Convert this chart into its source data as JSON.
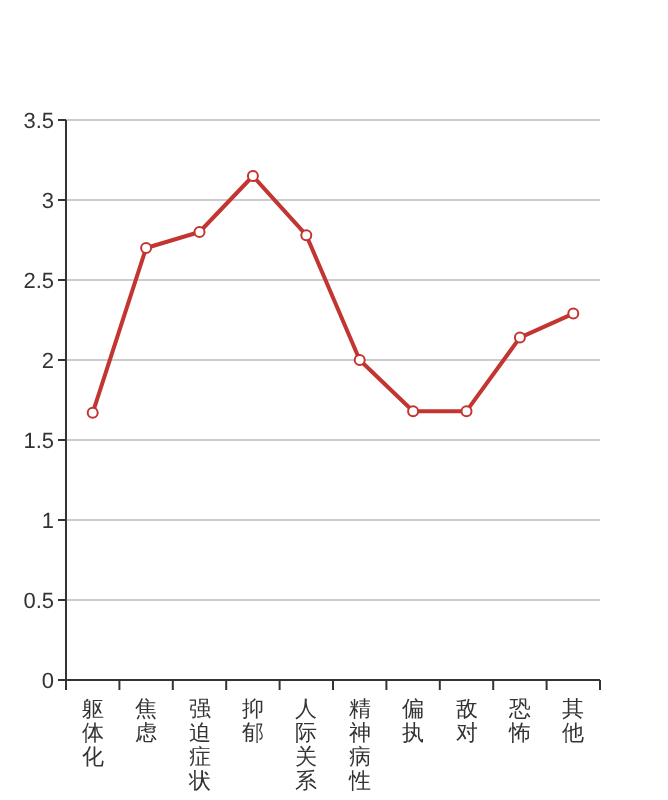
{
  "chart_data": {
    "type": "line",
    "categories": [
      "躯体化",
      "焦虑",
      "强迫症状",
      "抑郁",
      "人际关系",
      "精神病性",
      "偏执",
      "敌对",
      "恐怖",
      "其他"
    ],
    "series": [
      {
        "color": "#c23531",
        "values": [
          1.67,
          2.7,
          2.8,
          3.15,
          2.78,
          2.0,
          1.68,
          1.68,
          2.14,
          2.29
        ]
      }
    ],
    "ylim": [
      0,
      3.5
    ],
    "yticks": [
      0,
      0.5,
      1,
      1.5,
      2,
      2.5,
      3,
      3.5
    ],
    "grid": "y",
    "marker": "circle",
    "line_style": "solid"
  }
}
